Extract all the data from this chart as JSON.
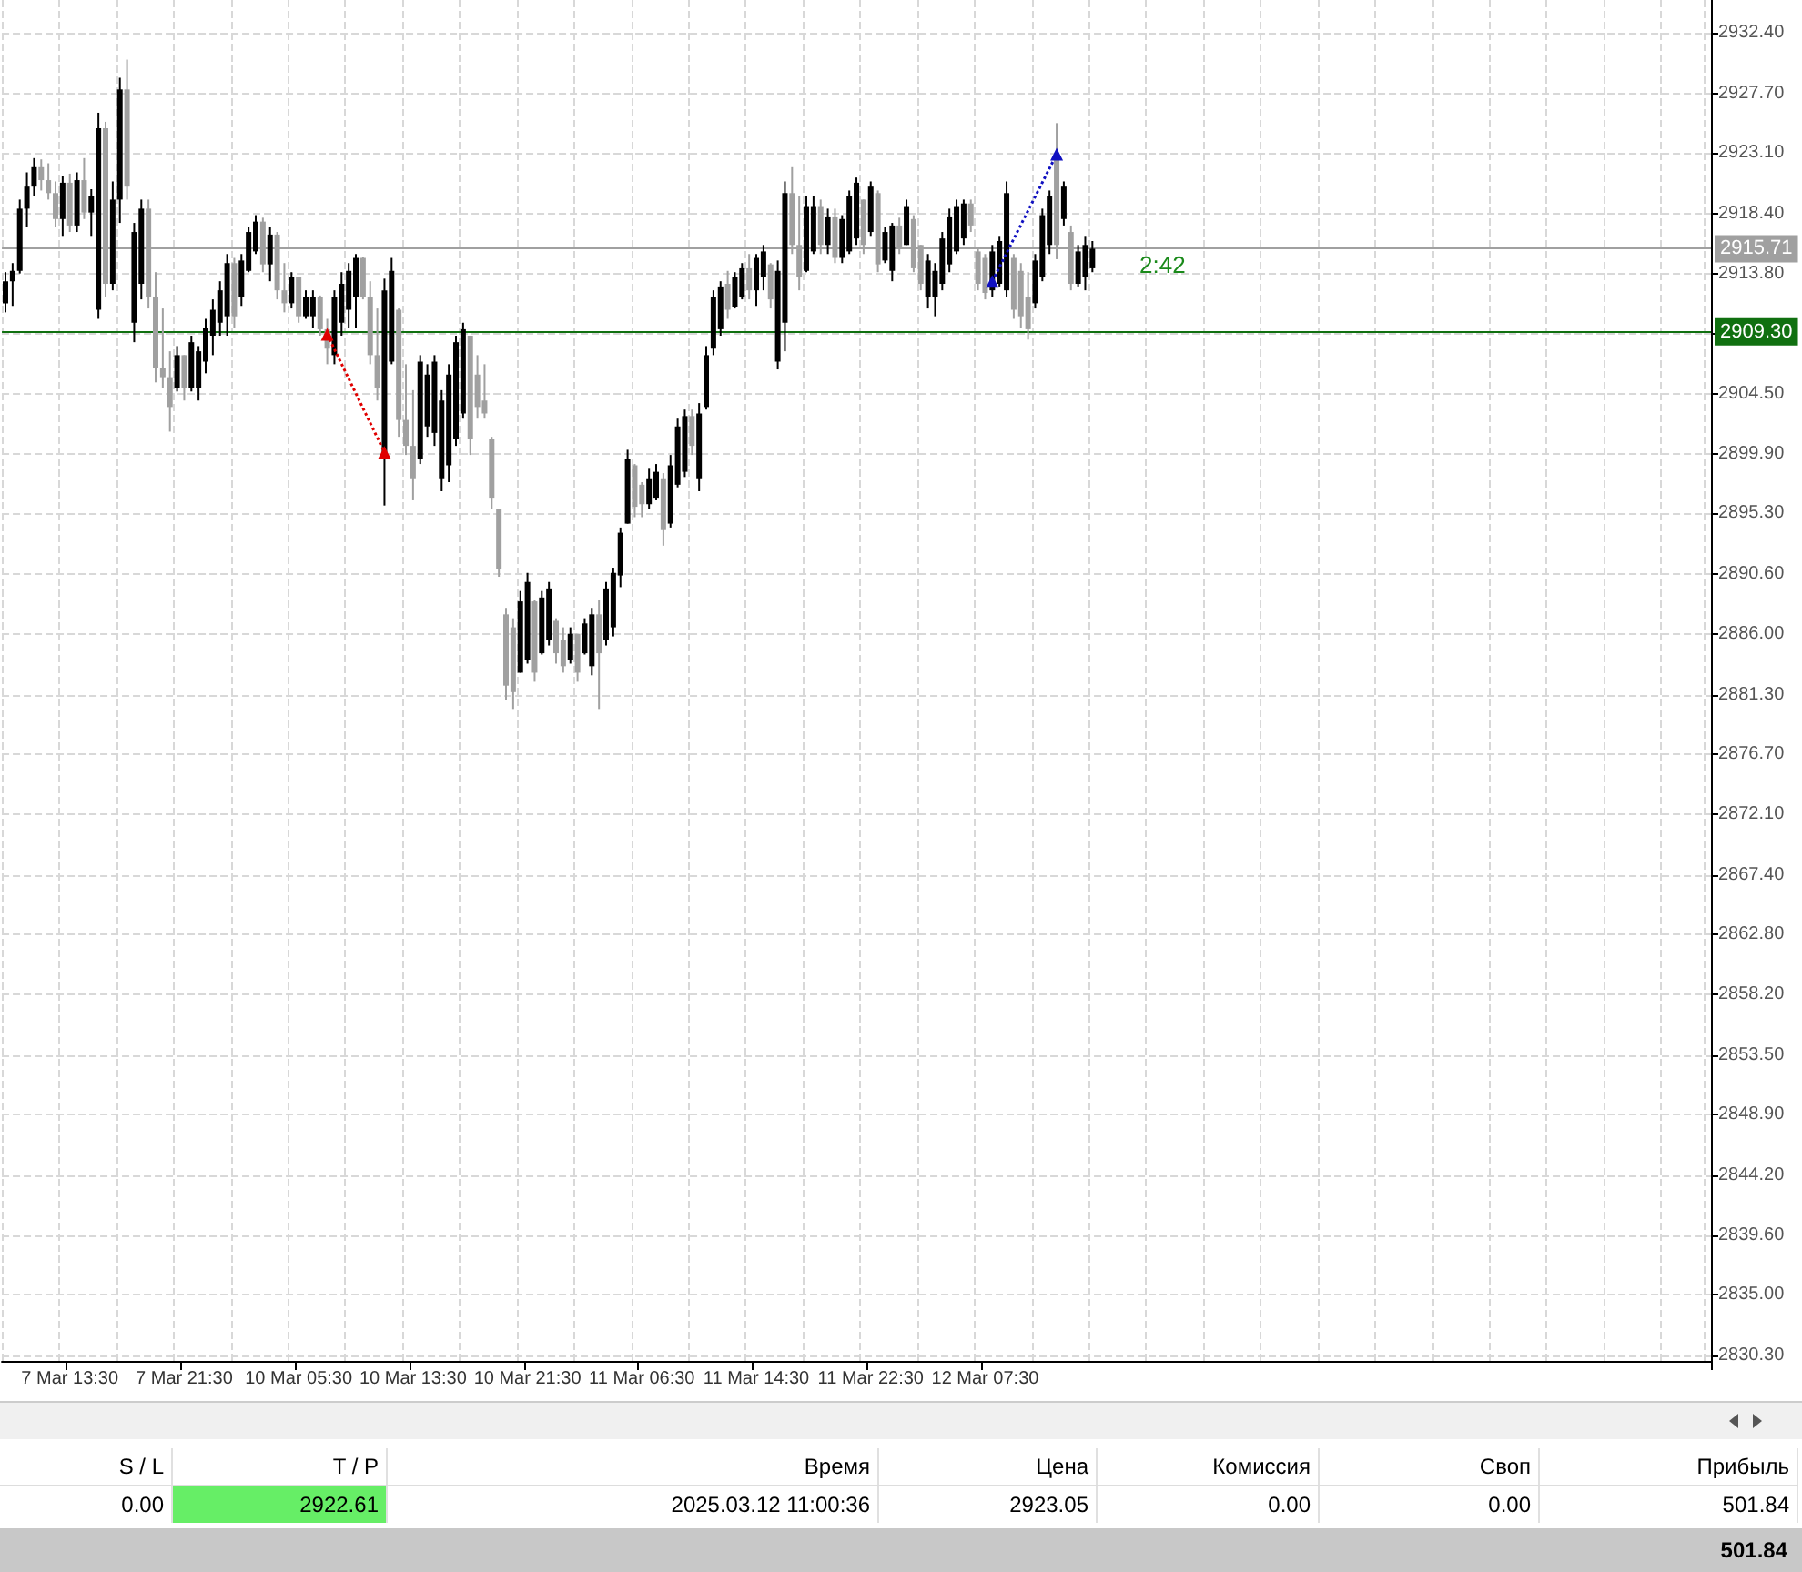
{
  "chart_data": {
    "type": "candlestick",
    "categories": [
      null,
      null,
      null,
      null,
      null,
      null,
      null,
      null,
      null,
      "7 Mar 13:30",
      null,
      null,
      null,
      null,
      null,
      null,
      null,
      null,
      null,
      null,
      null,
      null,
      null,
      null,
      null,
      "7 Mar 21:30",
      null,
      null,
      null,
      null,
      null,
      null,
      null,
      null,
      null,
      null,
      null,
      null,
      null,
      null,
      null,
      "10 Mar 05:30",
      null,
      null,
      null,
      null,
      null,
      null,
      null,
      null,
      null,
      null,
      null,
      null,
      null,
      null,
      null,
      "10 Mar 13:30",
      null,
      null,
      null,
      null,
      null,
      null,
      null,
      null,
      null,
      null,
      null,
      null,
      null,
      null,
      null,
      "10 Mar 21:30",
      null,
      null,
      null,
      null,
      null,
      null,
      null,
      null,
      null,
      null,
      null,
      null,
      null,
      null,
      null,
      "11 Mar 06:30",
      null,
      null,
      null,
      null,
      null,
      null,
      null,
      null,
      null,
      null,
      null,
      null,
      null,
      null,
      null,
      "11 Mar 14:30",
      null,
      null,
      null,
      null,
      null,
      null,
      null,
      null,
      null,
      null,
      null,
      null,
      null,
      null,
      null,
      "11 Mar 22:30",
      null,
      null,
      null,
      null,
      null,
      null,
      null,
      null,
      null,
      null,
      null,
      null,
      null,
      null,
      null,
      "12 Mar 07:30",
      null,
      null,
      null,
      null,
      null,
      null,
      null,
      null,
      null,
      null,
      null,
      null,
      null,
      null,
      null,
      null,
      null,
      null,
      null,
      null,
      null,
      null,
      null,
      null,
      null,
      null,
      null,
      null,
      null,
      null,
      null,
      null,
      null,
      null,
      null,
      null,
      null,
      null,
      null,
      null,
      null,
      null,
      null,
      null,
      null,
      null,
      null,
      null,
      null,
      null,
      null,
      null,
      null,
      null,
      null,
      null,
      null,
      null,
      null,
      null,
      null,
      null,
      null,
      null,
      null,
      null,
      null,
      null,
      null,
      null,
      null,
      null,
      null,
      null,
      null,
      null,
      null,
      null,
      null,
      null,
      null,
      null,
      null,
      null,
      null,
      null,
      null,
      null,
      null,
      null,
      null,
      null,
      null,
      null,
      null,
      null,
      null,
      null,
      null,
      null,
      null
    ],
    "ohlc": [
      [
        2911.5,
        2913.9,
        2910.8,
        2913.2
      ],
      [
        2913.2,
        2914.6,
        2911.3,
        2914.0
      ],
      [
        2914.0,
        2919.5,
        2913.8,
        2918.8
      ],
      [
        2918.8,
        2921.6,
        2917.4,
        2920.5
      ],
      [
        2920.5,
        2922.7,
        2919.8,
        2922.0
      ],
      [
        2922.0,
        2922.6,
        2920.2,
        2921.0
      ],
      [
        2921.0,
        2922.3,
        2919.5,
        2920.0
      ],
      [
        2920.0,
        2920.9,
        2917.4,
        2918.0
      ],
      [
        2918.0,
        2921.3,
        2916.7,
        2920.8
      ],
      [
        2920.8,
        2921.5,
        2917.0,
        2917.5
      ],
      [
        2917.5,
        2921.6,
        2917.0,
        2921.0
      ],
      [
        2921.0,
        2922.7,
        2918.0,
        2918.5
      ],
      [
        2918.5,
        2920.3,
        2916.7,
        2919.8
      ],
      [
        2911.0,
        2926.2,
        2910.3,
        2925.0
      ],
      [
        2925.0,
        2925.5,
        2912.0,
        2913.0
      ],
      [
        2913.0,
        2920.9,
        2912.5,
        2919.5
      ],
      [
        2919.5,
        2928.9,
        2917.7,
        2928.0
      ],
      [
        2928.0,
        2930.3,
        2919.5,
        2920.5
      ],
      [
        2910.0,
        2917.7,
        2908.5,
        2917.0
      ],
      [
        2913.0,
        2919.5,
        2911.8,
        2918.8
      ],
      [
        2918.8,
        2919.5,
        2911.1,
        2912.0
      ],
      [
        2912.0,
        2913.9,
        2905.4,
        2906.5
      ],
      [
        2906.5,
        2911.1,
        2905.0,
        2905.8
      ],
      [
        2905.8,
        2907.8,
        2901.6,
        2903.5
      ],
      [
        2905.0,
        2908.2,
        2904.7,
        2907.5
      ],
      [
        2907.5,
        2907.5,
        2904.0,
        2905.0
      ],
      [
        2905.0,
        2909.0,
        2904.7,
        2908.5
      ],
      [
        2905.0,
        2908.2,
        2904.0,
        2907.8
      ],
      [
        2907.0,
        2910.3,
        2906.1,
        2909.6
      ],
      [
        2909.0,
        2911.8,
        2907.5,
        2911.0
      ],
      [
        2910.0,
        2913.2,
        2909.0,
        2912.5
      ],
      [
        2910.5,
        2915.3,
        2909.0,
        2914.6
      ],
      [
        2914.6,
        2915.0,
        2909.6,
        2910.5
      ],
      [
        2912.0,
        2915.3,
        2911.3,
        2914.8
      ],
      [
        2914.0,
        2917.4,
        2913.9,
        2917.0
      ],
      [
        2915.5,
        2918.3,
        2915.3,
        2917.8
      ],
      [
        2917.8,
        2918.1,
        2913.9,
        2914.5
      ],
      [
        2914.5,
        2917.4,
        2913.2,
        2916.8
      ],
      [
        2916.8,
        2917.0,
        2911.8,
        2912.5
      ],
      [
        2912.5,
        2914.6,
        2910.8,
        2911.5
      ],
      [
        2911.5,
        2913.9,
        2911.1,
        2913.5
      ],
      [
        2913.5,
        2913.5,
        2910.0,
        2910.5
      ],
      [
        2910.5,
        2912.5,
        2910.3,
        2912.0
      ],
      [
        2910.5,
        2912.5,
        2909.6,
        2912.0
      ],
      [
        2912.0,
        2912.1,
        2909.0,
        2909.5
      ],
      [
        2909.5,
        2910.3,
        2906.8,
        2908.0
      ],
      [
        2907.5,
        2912.5,
        2906.8,
        2912.0
      ],
      [
        2910.0,
        2913.9,
        2909.0,
        2913.0
      ],
      [
        2911.0,
        2914.6,
        2909.6,
        2914.0
      ],
      [
        2912.0,
        2915.3,
        2909.6,
        2915.0
      ],
      [
        2915.0,
        2915.1,
        2911.8,
        2912.0
      ],
      [
        2912.0,
        2913.2,
        2906.8,
        2907.5
      ],
      [
        2907.5,
        2911.1,
        2904.0,
        2905.0
      ],
      [
        2900.0,
        2913.4,
        2895.9,
        2912.5
      ],
      [
        2907.0,
        2915.0,
        2906.8,
        2914.0
      ],
      [
        2911.0,
        2911.1,
        2901.2,
        2902.5
      ],
      [
        2902.5,
        2906.8,
        2899.8,
        2900.5
      ],
      [
        2900.5,
        2904.8,
        2896.3,
        2898.0
      ],
      [
        2899.5,
        2907.5,
        2899.1,
        2907.0
      ],
      [
        2902.0,
        2906.8,
        2901.2,
        2906.0
      ],
      [
        2901.5,
        2907.5,
        2900.5,
        2907.0
      ],
      [
        2898.0,
        2904.8,
        2897.0,
        2904.0
      ],
      [
        2899.0,
        2906.8,
        2897.7,
        2906.0
      ],
      [
        2901.0,
        2909.0,
        2900.5,
        2908.5
      ],
      [
        2903.0,
        2910.0,
        2902.6,
        2909.5
      ],
      [
        2909.0,
        2909.0,
        2899.8,
        2901.0
      ],
      [
        2906.0,
        2907.5,
        2902.6,
        2903.5
      ],
      [
        2904.0,
        2906.8,
        2902.6,
        2903.0
      ],
      [
        2901.0,
        2901.2,
        2895.6,
        2896.5
      ],
      [
        2895.6,
        2895.6,
        2890.4,
        2891.0
      ],
      [
        2887.5,
        2888.0,
        2880.9,
        2882.0
      ],
      [
        2886.5,
        2887.2,
        2880.2,
        2881.5
      ],
      [
        2883.0,
        2889.3,
        2883.0,
        2888.5
      ],
      [
        2884.0,
        2890.7,
        2883.7,
        2890.0
      ],
      [
        2888.5,
        2888.6,
        2882.3,
        2883.0
      ],
      [
        2884.5,
        2889.3,
        2884.4,
        2888.8
      ],
      [
        2885.5,
        2890.0,
        2885.1,
        2889.5
      ],
      [
        2887.0,
        2887.2,
        2883.7,
        2884.5
      ],
      [
        2885.5,
        2886.5,
        2883.0,
        2883.5
      ],
      [
        2884.0,
        2886.5,
        2883.7,
        2886.0
      ],
      [
        2886.0,
        2886.0,
        2882.3,
        2883.0
      ],
      [
        2884.5,
        2887.2,
        2884.4,
        2886.8
      ],
      [
        2883.5,
        2888.0,
        2882.8,
        2887.5
      ],
      [
        2887.5,
        2888.6,
        2880.2,
        2884.5
      ],
      [
        2885.5,
        2890.0,
        2885.1,
        2889.5
      ],
      [
        2886.5,
        2891.1,
        2885.8,
        2890.7
      ],
      [
        2890.5,
        2894.2,
        2889.6,
        2893.8
      ],
      [
        2894.5,
        2900.2,
        2894.5,
        2899.5
      ],
      [
        2899.0,
        2899.1,
        2895.0,
        2895.8
      ],
      [
        2897.5,
        2897.7,
        2895.0,
        2896.0
      ],
      [
        2896.0,
        2898.8,
        2895.6,
        2898.0
      ],
      [
        2896.5,
        2899.1,
        2896.3,
        2898.5
      ],
      [
        2898.0,
        2898.4,
        2892.8,
        2894.0
      ],
      [
        2894.5,
        2899.8,
        2894.2,
        2899.0
      ],
      [
        2897.5,
        2902.6,
        2897.3,
        2902.0
      ],
      [
        2898.5,
        2903.3,
        2898.1,
        2902.8
      ],
      [
        2902.8,
        2903.3,
        2899.8,
        2900.5
      ],
      [
        2898.0,
        2903.8,
        2897.0,
        2903.0
      ],
      [
        2903.5,
        2908.2,
        2903.3,
        2907.5
      ],
      [
        2908.0,
        2912.5,
        2907.5,
        2912.0
      ],
      [
        2909.5,
        2913.2,
        2909.0,
        2912.8
      ],
      [
        2913.0,
        2914.0,
        2910.3,
        2911.0
      ],
      [
        2911.2,
        2913.9,
        2911.1,
        2913.5
      ],
      [
        2912.0,
        2914.6,
        2911.8,
        2914.2
      ],
      [
        2914.2,
        2915.3,
        2911.8,
        2912.5
      ],
      [
        2912.5,
        2915.3,
        2911.3,
        2915.0
      ],
      [
        2913.5,
        2916.0,
        2912.5,
        2915.5
      ],
      [
        2914.5,
        2914.6,
        2911.1,
        2911.8
      ],
      [
        2907.0,
        2914.8,
        2906.4,
        2914.0
      ],
      [
        2910.0,
        2920.9,
        2907.8,
        2920.0
      ],
      [
        2920.0,
        2922.0,
        2915.3,
        2916.0
      ],
      [
        2916.0,
        2919.8,
        2912.5,
        2913.5
      ],
      [
        2914.0,
        2919.8,
        2913.9,
        2919.0
      ],
      [
        2915.5,
        2919.8,
        2915.3,
        2919.0
      ],
      [
        2919.0,
        2919.5,
        2915.3,
        2916.0
      ],
      [
        2916.0,
        2918.8,
        2915.3,
        2918.2
      ],
      [
        2918.2,
        2918.8,
        2914.6,
        2915.0
      ],
      [
        2915.0,
        2918.3,
        2914.6,
        2918.0
      ],
      [
        2915.5,
        2920.2,
        2915.3,
        2919.8
      ],
      [
        2916.5,
        2921.2,
        2916.0,
        2920.8
      ],
      [
        2919.5,
        2919.5,
        2915.3,
        2916.0
      ],
      [
        2917.0,
        2920.9,
        2916.7,
        2920.5
      ],
      [
        2920.0,
        2920.2,
        2913.9,
        2914.5
      ],
      [
        2914.8,
        2917.4,
        2914.6,
        2917.0
      ],
      [
        2914.0,
        2917.7,
        2913.2,
        2917.5
      ],
      [
        2917.5,
        2918.1,
        2915.3,
        2915.8
      ],
      [
        2916.0,
        2919.5,
        2916.0,
        2919.0
      ],
      [
        2918.0,
        2918.3,
        2913.9,
        2914.2
      ],
      [
        2916.0,
        2916.0,
        2912.5,
        2913.0
      ],
      [
        2912.0,
        2915.3,
        2911.1,
        2914.8
      ],
      [
        2912.0,
        2914.6,
        2910.5,
        2914.0
      ],
      [
        2913.0,
        2917.0,
        2912.5,
        2916.5
      ],
      [
        2914.5,
        2918.8,
        2913.9,
        2918.2
      ],
      [
        2915.5,
        2919.5,
        2915.3,
        2919.0
      ],
      [
        2916.5,
        2919.5,
        2916.0,
        2919.2
      ],
      [
        2919.2,
        2919.5,
        2917.0,
        2917.5
      ],
      [
        2915.5,
        2915.7,
        2912.5,
        2913.0
      ],
      [
        2915.0,
        2915.3,
        2911.8,
        2912.3
      ],
      [
        2912.5,
        2916.0,
        2912.0,
        2915.5
      ],
      [
        2913.0,
        2916.7,
        2912.8,
        2916.3
      ],
      [
        2912.5,
        2920.9,
        2912.0,
        2920.0
      ],
      [
        2915.0,
        2915.3,
        2910.3,
        2911.0
      ],
      [
        2914.0,
        2914.6,
        2909.6,
        2910.5
      ],
      [
        2912.0,
        2913.9,
        2908.7,
        2909.5
      ],
      [
        2911.5,
        2915.3,
        2911.1,
        2914.8
      ],
      [
        2913.5,
        2918.8,
        2913.2,
        2918.3
      ],
      [
        2916.0,
        2920.2,
        2915.3,
        2919.8
      ],
      [
        2923.0,
        2925.4,
        2914.9,
        2916.0
      ],
      [
        2918.0,
        2920.9,
        2917.5,
        2920.5
      ],
      [
        2917.0,
        2917.5,
        2912.5,
        2913.0
      ],
      [
        2913.0,
        2916.0,
        2912.8,
        2915.5
      ],
      [
        2913.5,
        2916.7,
        2912.5,
        2916.0
      ],
      [
        2914.2,
        2916.3,
        2913.9,
        2915.71
      ],
      null,
      null,
      null,
      null,
      null,
      null,
      null,
      null,
      null,
      null,
      null,
      null,
      null,
      null,
      null,
      null,
      null,
      null,
      null,
      null,
      null,
      null,
      null,
      null,
      null,
      null,
      null,
      null,
      null,
      null,
      null,
      null,
      null,
      null,
      null,
      null,
      null,
      null,
      null,
      null,
      null,
      null,
      null,
      null,
      null,
      null,
      null,
      null,
      null,
      null,
      null,
      null,
      null,
      null,
      null,
      null,
      null,
      null,
      null,
      null,
      null,
      null,
      null,
      null,
      null,
      null,
      null,
      null,
      null,
      null,
      null,
      null,
      null,
      null,
      null,
      null,
      null,
      null,
      null,
      null,
      null,
      null,
      null,
      null,
      null,
      null
    ],
    "series": [
      {
        "type": "line",
        "color": "#e00000",
        "line_style": "dotted",
        "marker": "triangle",
        "values": [
          null,
          null,
          null,
          null,
          null,
          null,
          null,
          null,
          null,
          null,
          null,
          null,
          null,
          null,
          null,
          null,
          null,
          null,
          null,
          null,
          null,
          null,
          null,
          null,
          null,
          null,
          null,
          null,
          null,
          null,
          null,
          null,
          null,
          null,
          null,
          null,
          null,
          null,
          null,
          null,
          null,
          null,
          null,
          null,
          null,
          2909.1,
          null,
          null,
          null,
          null,
          null,
          null,
          null,
          2900.0,
          null,
          null,
          null,
          null,
          null,
          null,
          null,
          null,
          null,
          null,
          null,
          null,
          null,
          null,
          null,
          null,
          null,
          null,
          null,
          null,
          null,
          null,
          null,
          null,
          null,
          null,
          null,
          null,
          null,
          null,
          null,
          null,
          null,
          null,
          null,
          null,
          null,
          null,
          null,
          null,
          null,
          null,
          null,
          null,
          null,
          null,
          null,
          null,
          null,
          null,
          null,
          null,
          null,
          null,
          null,
          null,
          null,
          null,
          null,
          null,
          null,
          null,
          null,
          null,
          null,
          null,
          null,
          null,
          null,
          null,
          null,
          null,
          null,
          null,
          null,
          null,
          null,
          null,
          null,
          null,
          null,
          null,
          null,
          null,
          null,
          null,
          null,
          null,
          null,
          null,
          null,
          null,
          null,
          null,
          null,
          null,
          null,
          null,
          null,
          null,
          null,
          null,
          null,
          null,
          null,
          null,
          null,
          null,
          null,
          null,
          null,
          null,
          null,
          null,
          null,
          null,
          null,
          null,
          null,
          null,
          null,
          null,
          null,
          null,
          null,
          null,
          null,
          null,
          null,
          null,
          null,
          null,
          null,
          null,
          null,
          null,
          null,
          null,
          null,
          null,
          null,
          null,
          null,
          null,
          null,
          null,
          null,
          null,
          null,
          null,
          null,
          null,
          null,
          null,
          null,
          null,
          null,
          null,
          null,
          null,
          null,
          null,
          null,
          null,
          null,
          null,
          null,
          null,
          null,
          null,
          null,
          null,
          null,
          null,
          null,
          null,
          null,
          null,
          null,
          null,
          null,
          null,
          null,
          null,
          null
        ]
      },
      {
        "type": "line",
        "color": "#1010c0",
        "line_style": "dotted",
        "marker": "triangle",
        "values": [
          null,
          null,
          null,
          null,
          null,
          null,
          null,
          null,
          null,
          null,
          null,
          null,
          null,
          null,
          null,
          null,
          null,
          null,
          null,
          null,
          null,
          null,
          null,
          null,
          null,
          null,
          null,
          null,
          null,
          null,
          null,
          null,
          null,
          null,
          null,
          null,
          null,
          null,
          null,
          null,
          null,
          null,
          null,
          null,
          null,
          null,
          null,
          null,
          null,
          null,
          null,
          null,
          null,
          null,
          null,
          null,
          null,
          null,
          null,
          null,
          null,
          null,
          null,
          null,
          null,
          null,
          null,
          null,
          null,
          null,
          null,
          null,
          null,
          null,
          null,
          null,
          null,
          null,
          null,
          null,
          null,
          null,
          null,
          null,
          null,
          null,
          null,
          null,
          null,
          null,
          null,
          null,
          null,
          null,
          null,
          null,
          null,
          null,
          null,
          null,
          null,
          null,
          null,
          null,
          null,
          null,
          null,
          null,
          null,
          null,
          null,
          null,
          null,
          null,
          null,
          null,
          null,
          null,
          null,
          null,
          null,
          null,
          null,
          null,
          null,
          null,
          null,
          null,
          null,
          null,
          null,
          null,
          null,
          null,
          null,
          null,
          null,
          null,
          2913.2,
          null,
          null,
          null,
          null,
          null,
          null,
          null,
          null,
          2923.0,
          null,
          null,
          null,
          null,
          null,
          null,
          null,
          null,
          null,
          null,
          null,
          null,
          null,
          null,
          null,
          null,
          null,
          null,
          null,
          null,
          null,
          null,
          null,
          null,
          null,
          null,
          null,
          null,
          null,
          null,
          null,
          null,
          null,
          null,
          null,
          null,
          null,
          null,
          null,
          null,
          null,
          null,
          null,
          null,
          null,
          null,
          null,
          null,
          null,
          null,
          null,
          null,
          null,
          null,
          null,
          null,
          null,
          null,
          null,
          null,
          null,
          null,
          null,
          null,
          null,
          null,
          null,
          null,
          null,
          null,
          null,
          null,
          null,
          null,
          null,
          null,
          null,
          null,
          null,
          null,
          null,
          null,
          null,
          null,
          null,
          null,
          null,
          null,
          null,
          null,
          null
        ]
      }
    ],
    "colors": [
      "#000000",
      "#000000",
      "#000000",
      "#000000",
      "#000000",
      "#a0a0a0",
      "#a0a0a0",
      "#a0a0a0",
      "#000000",
      "#a0a0a0",
      "#000000",
      "#a0a0a0",
      "#000000",
      "#000000",
      "#a0a0a0",
      "#000000",
      "#000000",
      "#a0a0a0",
      "#000000",
      "#000000",
      "#a0a0a0",
      "#a0a0a0",
      "#a0a0a0",
      "#a0a0a0",
      "#000000",
      "#a0a0a0",
      "#000000",
      "#000000",
      "#000000",
      "#000000",
      "#000000",
      "#000000",
      "#a0a0a0",
      "#000000",
      "#000000",
      "#000000",
      "#a0a0a0",
      "#000000",
      "#a0a0a0",
      "#a0a0a0",
      "#000000",
      "#a0a0a0",
      "#000000",
      "#000000",
      "#a0a0a0",
      "#a0a0a0",
      "#000000",
      "#000000",
      "#000000",
      "#000000",
      "#a0a0a0",
      "#a0a0a0",
      "#a0a0a0",
      "#000000",
      "#000000",
      "#a0a0a0",
      "#a0a0a0",
      "#a0a0a0",
      "#000000",
      "#000000",
      "#000000",
      "#000000",
      "#000000",
      "#000000",
      "#000000",
      "#a0a0a0",
      "#a0a0a0",
      "#a0a0a0",
      "#a0a0a0",
      "#a0a0a0",
      "#a0a0a0",
      "#a0a0a0",
      "#000000",
      "#000000",
      "#a0a0a0",
      "#000000",
      "#000000",
      "#a0a0a0",
      "#a0a0a0",
      "#000000",
      "#a0a0a0",
      "#000000",
      "#000000",
      "#a0a0a0",
      "#000000",
      "#000000",
      "#000000",
      "#000000",
      "#a0a0a0",
      "#a0a0a0",
      "#000000",
      "#000000",
      "#a0a0a0",
      "#000000",
      "#000000",
      "#000000",
      "#a0a0a0",
      "#000000",
      "#000000",
      "#000000",
      "#000000",
      "#a0a0a0",
      "#000000",
      "#000000",
      "#a0a0a0",
      "#000000",
      "#000000",
      "#a0a0a0",
      "#000000",
      "#000000",
      "#a0a0a0",
      "#a0a0a0",
      "#000000",
      "#000000",
      "#a0a0a0",
      "#000000",
      "#a0a0a0",
      "#000000",
      "#000000",
      "#000000",
      "#a0a0a0",
      "#000000",
      "#a0a0a0",
      "#000000",
      "#000000",
      "#a0a0a0",
      "#000000",
      "#a0a0a0",
      "#a0a0a0",
      "#000000",
      "#000000",
      "#000000",
      "#000000",
      "#000000",
      "#000000",
      "#a0a0a0",
      "#a0a0a0",
      "#a0a0a0",
      "#000000",
      "#000000",
      "#000000",
      "#a0a0a0",
      "#a0a0a0",
      "#a0a0a0",
      "#000000",
      "#000000",
      "#000000",
      "#a0a0a0",
      "#000000",
      "#a0a0a0",
      "#000000",
      "#000000",
      "#000000",
      null,
      null,
      null,
      null,
      null,
      null,
      null,
      null,
      null,
      null,
      null,
      null,
      null,
      null,
      null,
      null,
      null,
      null,
      null,
      null,
      null,
      null,
      null,
      null,
      null,
      null,
      null,
      null,
      null,
      null,
      null,
      null,
      null,
      null,
      null,
      null,
      null,
      null,
      null,
      null,
      null,
      null,
      null,
      null,
      null,
      null,
      null,
      null,
      null,
      null,
      null,
      null,
      null,
      null,
      null,
      null,
      null,
      null,
      null,
      null,
      null,
      null,
      null,
      null,
      null,
      null,
      null,
      null,
      null,
      null,
      null,
      null,
      null,
      null,
      null,
      null,
      null,
      null,
      null,
      null,
      null,
      null,
      null,
      null,
      null,
      null
    ],
    "ylim": [
      2829.9,
      2934.9
    ],
    "yticks": [
      {
        "value": 2830.3,
        "label": "2830.30"
      },
      {
        "value": 2835.0,
        "label": "2835.00"
      },
      {
        "value": 2839.6,
        "label": "2839.60"
      },
      {
        "value": 2844.2,
        "label": "2844.20"
      },
      {
        "value": 2848.9,
        "label": "2848.90"
      },
      {
        "value": 2853.5,
        "label": "2853.50"
      },
      {
        "value": 2858.2,
        "label": "2858.20"
      },
      {
        "value": 2862.8,
        "label": "2862.80"
      },
      {
        "value": 2867.4,
        "label": "2867.40"
      },
      {
        "value": 2872.1,
        "label": "2872.10"
      },
      {
        "value": 2876.7,
        "label": "2876.70"
      },
      {
        "value": 2881.3,
        "label": "2881.30"
      },
      {
        "value": 2886.0,
        "label": "2886.00"
      },
      {
        "value": 2890.6,
        "label": "2890.60"
      },
      {
        "value": 2895.3,
        "label": "2895.30"
      },
      {
        "value": 2899.9,
        "label": "2899.90"
      },
      {
        "value": 2904.5,
        "label": "2904.50"
      },
      {
        "value": 2909.2,
        "label": null
      },
      {
        "value": 2913.8,
        "label": "2913.80"
      },
      {
        "value": 2918.4,
        "label": "2918.40"
      },
      {
        "value": 2923.1,
        "label": "2923.10"
      },
      {
        "value": 2927.7,
        "label": "2927.70"
      },
      {
        "value": 2932.4,
        "label": "2932.40"
      }
    ],
    "grid": true,
    "ref_lines": [
      {
        "axis": "y",
        "value": 2915.71,
        "label": "2915.71",
        "color": "#a0a0a0"
      },
      {
        "axis": "y",
        "value": 2909.3,
        "label": "2909.30",
        "color": "#107010"
      }
    ],
    "annotations": [
      "2:42",
      "S / L",
      "T / P",
      "Время",
      "Цена",
      "Комиссия",
      "Своп",
      "Прибыль",
      "0.00",
      "2922.61",
      "2025.03.12 11:00:36",
      "2923.05",
      "0.00",
      "0.00",
      "501.84",
      "501.84"
    ]
  }
}
